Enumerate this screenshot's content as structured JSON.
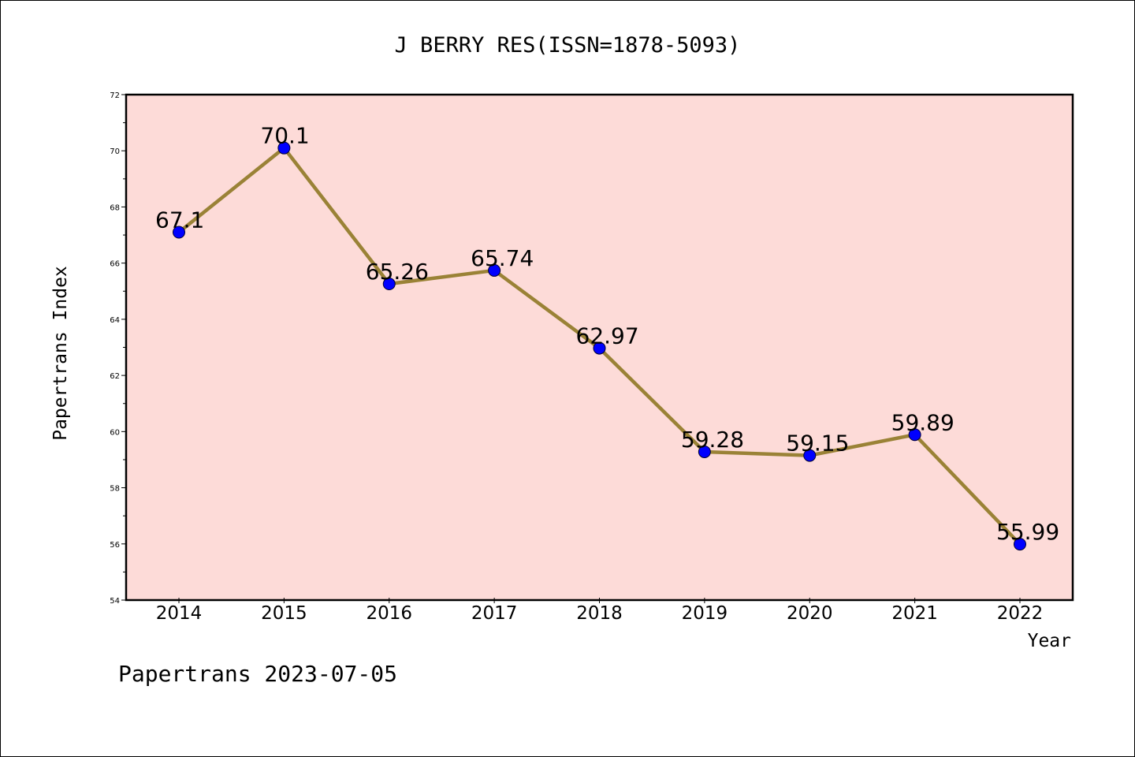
{
  "chart_data": {
    "type": "line",
    "title": "J BERRY RES(ISSN=1878-5093)",
    "xlabel": "Year",
    "ylabel": "Papertrans Index",
    "footer": "Papertrans 2023-07-05",
    "x": [
      "2014",
      "2015",
      "2016",
      "2017",
      "2018",
      "2019",
      "2020",
      "2021",
      "2022"
    ],
    "y_ticks": [
      "54",
      "56",
      "58",
      "60",
      "62",
      "64",
      "66",
      "68",
      "70",
      "72"
    ],
    "series": [
      {
        "values": [
          67.1,
          70.1,
          65.26,
          65.74,
          62.97,
          59.28,
          59.15,
          59.89,
          55.99
        ],
        "labels": [
          "67.1",
          "70.1",
          "65.26",
          "65.74",
          "62.97",
          "59.28",
          "59.15",
          "59.89",
          "55.99"
        ]
      }
    ],
    "ylim": [
      54,
      72
    ],
    "grid": false,
    "colors": {
      "plot_background": "#fddbd8",
      "line": "#9a8236",
      "marker": "#0000ff"
    }
  }
}
